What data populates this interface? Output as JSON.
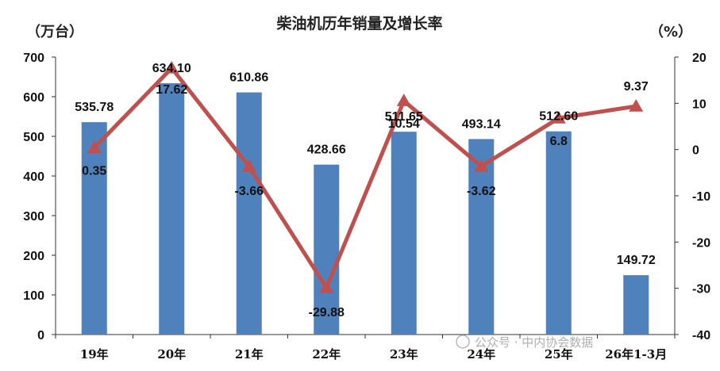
{
  "chart_data": {
    "type": "bar+line",
    "title": "柴油机历年销量及增长率",
    "left_unit": "（万台）",
    "right_unit": "（%）",
    "categories": [
      "19年",
      "20年",
      "21年",
      "22年",
      "23年",
      "24年",
      "25年",
      "26年1-3月"
    ],
    "bar_values": [
      535.78,
      634.1,
      610.86,
      428.66,
      511.65,
      493.14,
      512.6,
      149.72
    ],
    "bar_labels": [
      "535.78",
      "634.10",
      "610.86",
      "428.66",
      "511.65",
      "493.14",
      "512.60",
      "149.72"
    ],
    "line_values": [
      0.35,
      17.62,
      -3.66,
      -29.88,
      10.54,
      -3.62,
      6.8,
      9.37
    ],
    "line_labels": [
      "0.35",
      "17.62",
      "-3.66",
      "-29.88",
      "10.54",
      "-3.62",
      "6.8",
      "9.37"
    ],
    "y_left": {
      "min": 0,
      "max": 700,
      "ticks": [
        "0",
        "100",
        "200",
        "300",
        "400",
        "500",
        "600",
        "700"
      ]
    },
    "y_right": {
      "min": -40,
      "max": 20,
      "ticks": [
        "-40",
        "-30",
        "-20",
        "-10",
        "0",
        "10",
        "20"
      ]
    },
    "bar_color": "#4F81BD",
    "line_color": "#C0504D",
    "grid": false
  },
  "watermark": "公众号 · 中内协会数据"
}
